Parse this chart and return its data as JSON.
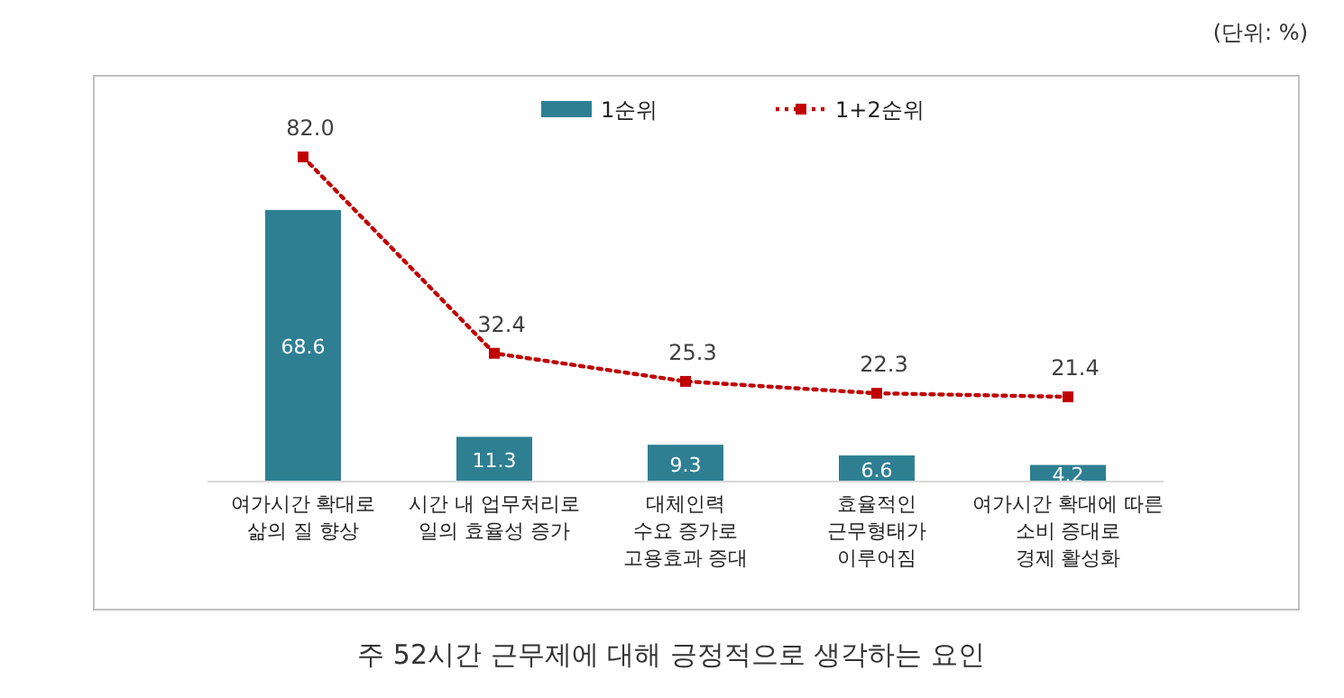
{
  "chart_data": {
    "type": "bar",
    "categories": [
      "여가시간 확대로\n삶의 질 향상",
      "시간 내 업무처리로\n일의 효율성 증가",
      "대체인력\n수요 증가로\n고용효과 증대",
      "효율적인\n근무형태가\n이루어짐",
      "여가시간 확대에 따른\n소비 증대로\n경제 활성화"
    ],
    "series": [
      {
        "name": "1순위",
        "color": "#2f7f93",
        "values": [
          68.6,
          11.3,
          9.3,
          6.6,
          4.2
        ]
      },
      {
        "name": "1+2순위",
        "type": "line",
        "color": "#c00000",
        "values": [
          82.0,
          32.4,
          25.3,
          22.3,
          21.4
        ],
        "value_labels": [
          "82.0",
          "32.4",
          "25.3",
          "22.3",
          "21.4"
        ]
      }
    ],
    "marker": "square",
    "line_style": "dotted",
    "data_labels": true,
    "legend": "top",
    "annotations": [
      "(단위: %)",
      "주 52시간 근무제에 대해 긍정적으로 생각하는 요인"
    ]
  }
}
